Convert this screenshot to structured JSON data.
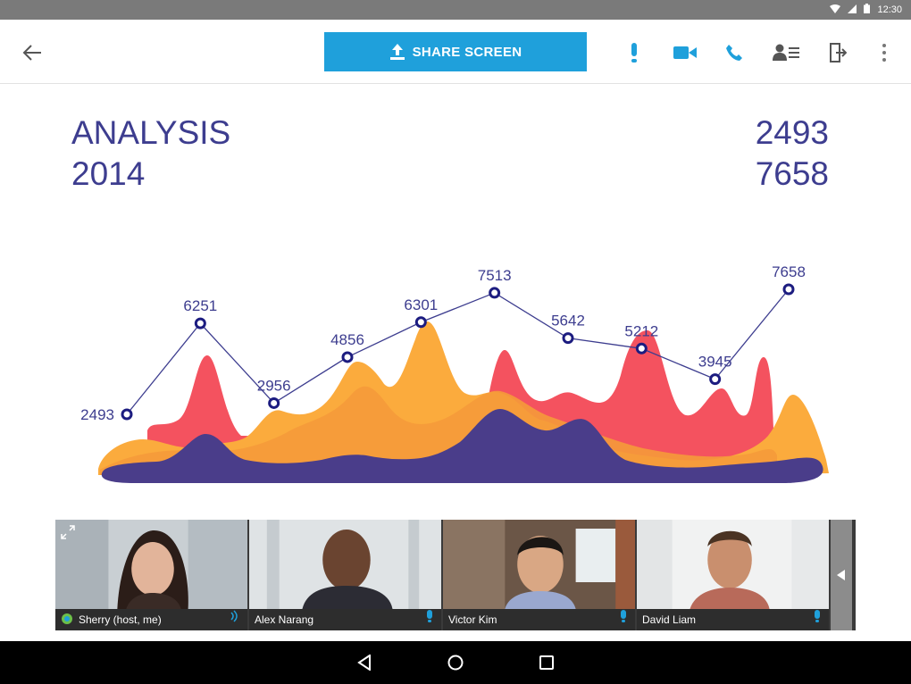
{
  "status_bar": {
    "time": "12:30"
  },
  "toolbar": {
    "share_label": "SHARE SCREEN",
    "accent_color": "#1fa0db"
  },
  "content": {
    "title_line1": "ANALYSIS",
    "title_line2": "2014",
    "stat_1": "2493",
    "stat_2": "7658"
  },
  "chart_data": {
    "type": "line",
    "points": [
      {
        "label": "2493",
        "value": 2493
      },
      {
        "label": "6251",
        "value": 6251
      },
      {
        "label": "2956",
        "value": 2956
      },
      {
        "label": "4856",
        "value": 4856
      },
      {
        "label": "6301",
        "value": 6301
      },
      {
        "label": "7513",
        "value": 7513
      },
      {
        "label": "5642",
        "value": 5642
      },
      {
        "label": "5212",
        "value": 5212
      },
      {
        "label": "3945",
        "value": 3945
      },
      {
        "label": "7658",
        "value": 7658
      }
    ],
    "colors": {
      "line": "#3d3d8f",
      "red": "#f4525f",
      "orange": "#fbab3d",
      "purple": "#4a3d8a"
    }
  },
  "participants": [
    {
      "name": "Sherry (host, me)"
    },
    {
      "name": "Alex Narang"
    },
    {
      "name": "Victor Kim"
    },
    {
      "name": "David Liam"
    }
  ]
}
